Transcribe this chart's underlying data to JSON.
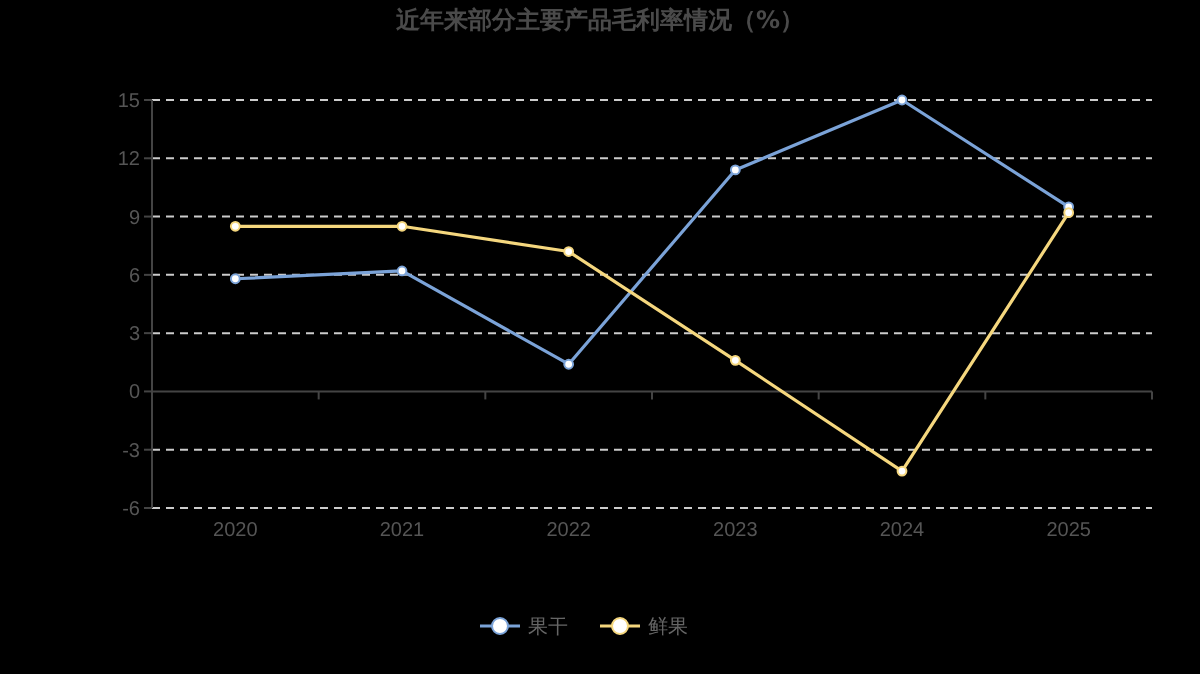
{
  "chart_data": {
    "type": "line",
    "title": "近年来部分主要产品毛利率情况（%）",
    "categories": [
      "2020",
      "2021",
      "2022",
      "2023",
      "2024",
      "2025"
    ],
    "series": [
      {
        "name": "果干",
        "color": "#7ba3d8",
        "values": [
          5.8,
          6.2,
          1.4,
          11.4,
          15,
          9.5
        ]
      },
      {
        "name": "鲜果",
        "color": "#f5d77e",
        "values": [
          8.5,
          8.5,
          7.2,
          1.6,
          -4.1,
          9.2
        ]
      }
    ],
    "ylim": [
      -6,
      15
    ],
    "yticks": [
      -6,
      -3,
      0,
      3,
      6,
      9,
      12,
      15
    ],
    "grid": "y",
    "legend": "bottom",
    "marker": "circle",
    "line_style": "solid"
  }
}
